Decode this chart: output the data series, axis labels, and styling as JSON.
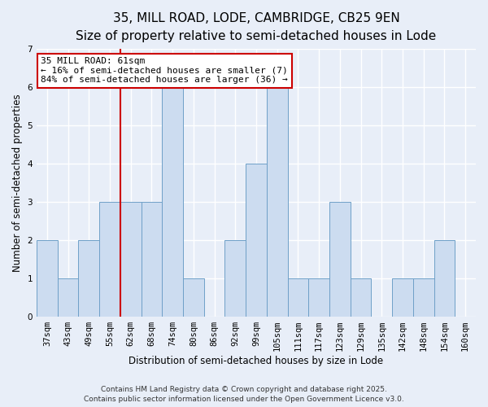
{
  "title": "35, MILL ROAD, LODE, CAMBRIDGE, CB25 9EN",
  "subtitle": "Size of property relative to semi-detached houses in Lode",
  "xlabel": "Distribution of semi-detached houses by size in Lode",
  "ylabel": "Number of semi-detached properties",
  "bin_labels": [
    "37sqm",
    "43sqm",
    "49sqm",
    "55sqm",
    "62sqm",
    "68sqm",
    "74sqm",
    "80sqm",
    "86sqm",
    "92sqm",
    "99sqm",
    "105sqm",
    "111sqm",
    "117sqm",
    "123sqm",
    "129sqm",
    "135sqm",
    "142sqm",
    "148sqm",
    "154sqm",
    "160sqm"
  ],
  "bin_values": [
    2,
    1,
    2,
    3,
    3,
    3,
    6,
    1,
    0,
    2,
    4,
    6,
    1,
    1,
    3,
    1,
    0,
    1,
    1,
    2,
    0
  ],
  "bar_color": "#ccdcf0",
  "bar_edgecolor": "#6fa0c8",
  "reference_line_index": 4,
  "reference_line_label": "35 MILL ROAD: 61sqm",
  "annotation_line1": "← 16% of semi-detached houses are smaller (7)",
  "annotation_line2": "84% of semi-detached houses are larger (36) →",
  "annotation_box_edgecolor": "#cc0000",
  "annotation_box_facecolor": "#ffffff",
  "ref_line_color": "#cc0000",
  "ylim": [
    0,
    7
  ],
  "yticks": [
    0,
    1,
    2,
    3,
    4,
    5,
    6,
    7
  ],
  "background_color": "#e8eef8",
  "footer_line1": "Contains HM Land Registry data © Crown copyright and database right 2025.",
  "footer_line2": "Contains public sector information licensed under the Open Government Licence v3.0.",
  "title_fontsize": 11,
  "subtitle_fontsize": 9.5,
  "axis_label_fontsize": 8.5,
  "tick_fontsize": 7.5,
  "annotation_fontsize": 8,
  "footer_fontsize": 6.5
}
